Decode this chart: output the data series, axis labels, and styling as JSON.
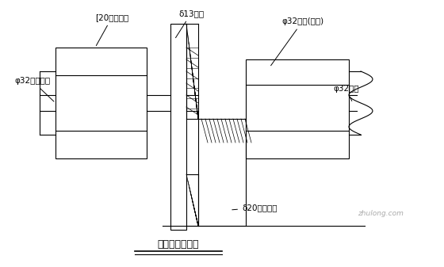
{
  "title": "拉杆位置大样图",
  "bg_color": "#ffffff",
  "line_color": "#000000",
  "hatch_color": "#000000",
  "labels": {
    "channel_steel": "[20加强槽钢",
    "formwork": "δ13模面",
    "rough_nut": "φ32粗制螺母",
    "long_nut": "φ32螺母(加长)",
    "tie_rod": "φ32拉杆",
    "steel_plate": "δ20加强钢板"
  },
  "font_size": 7.5,
  "title_font_size": 9
}
